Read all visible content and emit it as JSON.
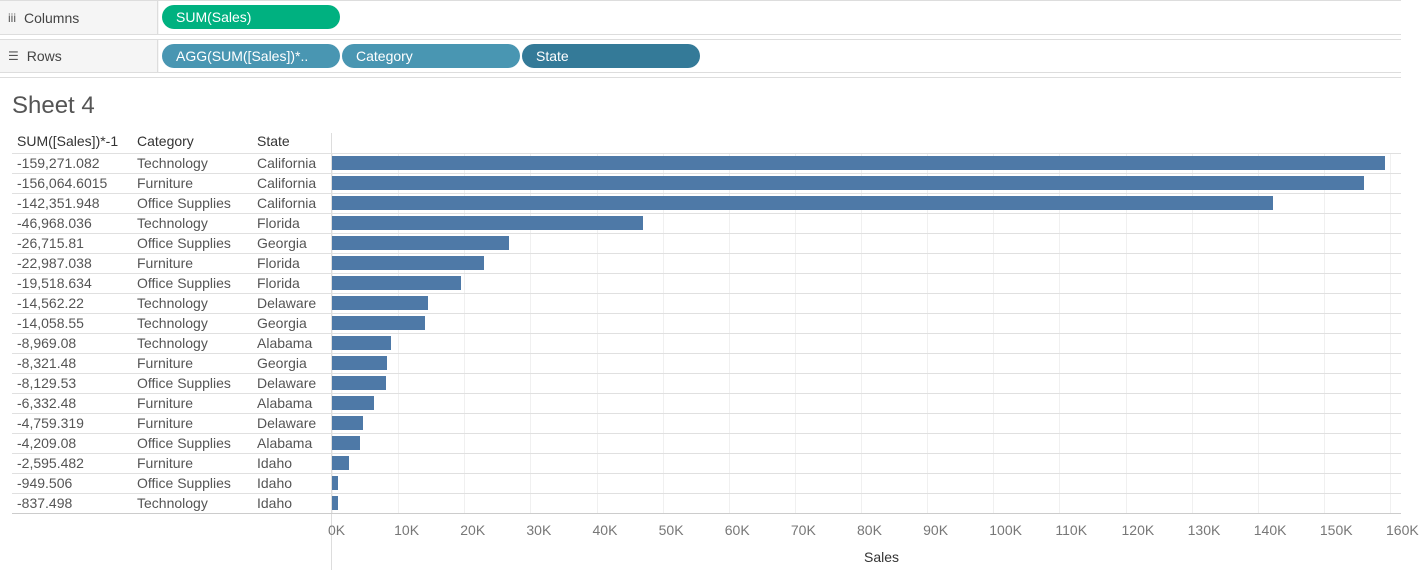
{
  "shelves": {
    "columns": {
      "label": "Columns",
      "icon": "columns-icon",
      "pills": [
        {
          "label": "SUM(Sales)",
          "color": "#00b180"
        }
      ]
    },
    "rows": {
      "label": "Rows",
      "icon": "rows-icon",
      "pills": [
        {
          "label": "AGG(SUM([Sales])*..",
          "color": "#4996b2"
        },
        {
          "label": "Category",
          "color": "#4996b2"
        },
        {
          "label": "State",
          "color": "#347a98"
        }
      ]
    }
  },
  "sheet_title": "Sheet 4",
  "headers": [
    "SUM([Sales])*-1",
    "Category",
    "State"
  ],
  "chart_data": {
    "type": "bar",
    "orientation": "horizontal",
    "xlabel": "Sales",
    "xlim": [
      0,
      160000
    ],
    "xticks": [
      "0K",
      "10K",
      "20K",
      "30K",
      "40K",
      "50K",
      "60K",
      "70K",
      "80K",
      "90K",
      "100K",
      "110K",
      "120K",
      "130K",
      "140K",
      "150K",
      "160K"
    ],
    "grid": true,
    "bar_color": "#4e79a7",
    "rows": [
      {
        "neg": "-159,271.082",
        "category": "Technology",
        "state": "California",
        "value": 159271.082
      },
      {
        "neg": "-156,064.6015",
        "category": "Furniture",
        "state": "California",
        "value": 156064.6015
      },
      {
        "neg": "-142,351.948",
        "category": "Office Supplies",
        "state": "California",
        "value": 142351.948
      },
      {
        "neg": "-46,968.036",
        "category": "Technology",
        "state": "Florida",
        "value": 46968.036
      },
      {
        "neg": "-26,715.81",
        "category": "Office Supplies",
        "state": "Georgia",
        "value": 26715.81
      },
      {
        "neg": "-22,987.038",
        "category": "Furniture",
        "state": "Florida",
        "value": 22987.038
      },
      {
        "neg": "-19,518.634",
        "category": "Office Supplies",
        "state": "Florida",
        "value": 19518.634
      },
      {
        "neg": "-14,562.22",
        "category": "Technology",
        "state": "Delaware",
        "value": 14562.22
      },
      {
        "neg": "-14,058.55",
        "category": "Technology",
        "state": "Georgia",
        "value": 14058.55
      },
      {
        "neg": "-8,969.08",
        "category": "Technology",
        "state": "Alabama",
        "value": 8969.08
      },
      {
        "neg": "-8,321.48",
        "category": "Furniture",
        "state": "Georgia",
        "value": 8321.48
      },
      {
        "neg": "-8,129.53",
        "category": "Office Supplies",
        "state": "Delaware",
        "value": 8129.53
      },
      {
        "neg": "-6,332.48",
        "category": "Furniture",
        "state": "Alabama",
        "value": 6332.48
      },
      {
        "neg": "-4,759.319",
        "category": "Furniture",
        "state": "Delaware",
        "value": 4759.319
      },
      {
        "neg": "-4,209.08",
        "category": "Office Supplies",
        "state": "Alabama",
        "value": 4209.08
      },
      {
        "neg": "-2,595.482",
        "category": "Furniture",
        "state": "Idaho",
        "value": 2595.482
      },
      {
        "neg": "-949.506",
        "category": "Office Supplies",
        "state": "Idaho",
        "value": 949.506
      },
      {
        "neg": "-837.498",
        "category": "Technology",
        "state": "Idaho",
        "value": 837.498
      }
    ]
  }
}
